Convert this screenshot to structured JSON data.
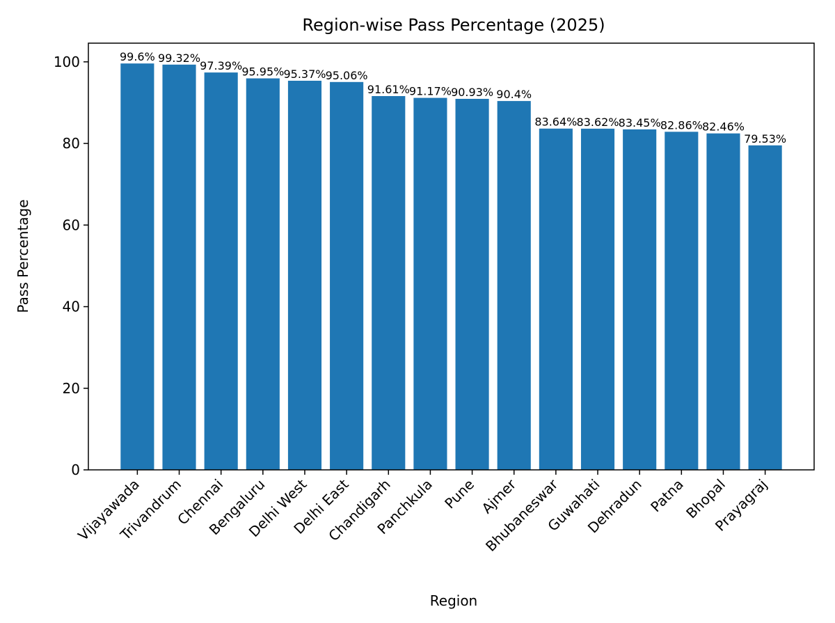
{
  "chart_data": {
    "type": "bar",
    "title": "Region-wise Pass Percentage (2025)",
    "xlabel": "Region",
    "ylabel": "Pass Percentage",
    "ylim": [
      0,
      104.58
    ],
    "yticks": [
      0,
      20,
      40,
      60,
      80,
      100
    ],
    "grid": false,
    "bar_color": "#1f77b4",
    "categories": [
      "Vijayawada",
      "Trivandrum",
      "Chennai",
      "Bengaluru",
      "Delhi West",
      "Delhi East",
      "Chandigarh",
      "Panchkula",
      "Pune",
      "Ajmer",
      "Bhubaneswar",
      "Guwahati",
      "Dehradun",
      "Patna",
      "Bhopal",
      "Prayagraj"
    ],
    "values": [
      99.6,
      99.32,
      97.39,
      95.95,
      95.37,
      95.06,
      91.61,
      91.17,
      90.93,
      90.4,
      83.64,
      83.62,
      83.45,
      82.86,
      82.46,
      79.53
    ],
    "data_labels": [
      "99.6%",
      "99.32%",
      "97.39%",
      "95.95%",
      "95.37%",
      "95.06%",
      "91.61%",
      "91.17%",
      "90.93%",
      "90.4%",
      "83.64%",
      "83.62%",
      "83.45%",
      "82.86%",
      "82.46%",
      "79.53%"
    ]
  }
}
